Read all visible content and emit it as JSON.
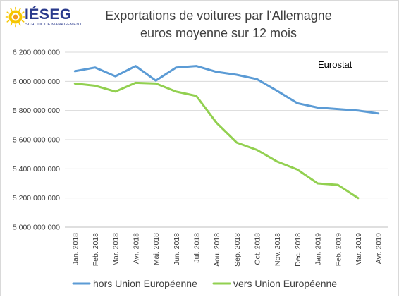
{
  "logo": {
    "name": "IÉSEG",
    "subtitle": "SCHOOL OF MANAGEMENT",
    "colors": [
      "#f6c600",
      "#f39a1e",
      "#2a3a8c"
    ]
  },
  "chart_data": {
    "type": "line",
    "title": "Exportations de voitures par l'Allemagne",
    "subtitle": "euros moyenne sur 12 mois",
    "annotation": "Eurostat",
    "categories": [
      "Jan. 2018",
      "Feb. 2018",
      "Mar. 2018",
      "Avr. 2018",
      "Mai. 2018",
      "Jun. 2018",
      "Jul. 2018",
      "Aou. 2018",
      "Sep. 2018",
      "Oct. 2018",
      "Nov. 2018",
      "Dec. 2018",
      "Jan. 2019",
      "Feb. 2019",
      "Mar. 2019",
      "Avr. 2019"
    ],
    "ylim": [
      5000000000,
      6200000000
    ],
    "yticks": [
      5000000000,
      5200000000,
      5400000000,
      5600000000,
      5800000000,
      6000000000,
      6200000000
    ],
    "ytick_labels": [
      "5 000 000 000",
      "5 200 000 000",
      "5 400 000 000",
      "5 600 000 000",
      "5 800 000 000",
      "6 000 000 000",
      "6 200 000 000"
    ],
    "grid": true,
    "legend_position": "bottom",
    "series": [
      {
        "name": "hors Union Européenne",
        "color": "#5b9bd5",
        "values": [
          6070000000,
          6095000000,
          6035000000,
          6105000000,
          6005000000,
          6095000000,
          6105000000,
          6065000000,
          6045000000,
          6015000000,
          5935000000,
          5850000000,
          5820000000,
          5810000000,
          5800000000,
          5780000000
        ]
      },
      {
        "name": "vers Union Européenne",
        "color": "#92d050",
        "values": [
          5985000000,
          5970000000,
          5930000000,
          5990000000,
          5985000000,
          5930000000,
          5900000000,
          5715000000,
          5580000000,
          5530000000,
          5450000000,
          5395000000,
          5300000000,
          5290000000,
          5200000000,
          null
        ]
      }
    ]
  }
}
